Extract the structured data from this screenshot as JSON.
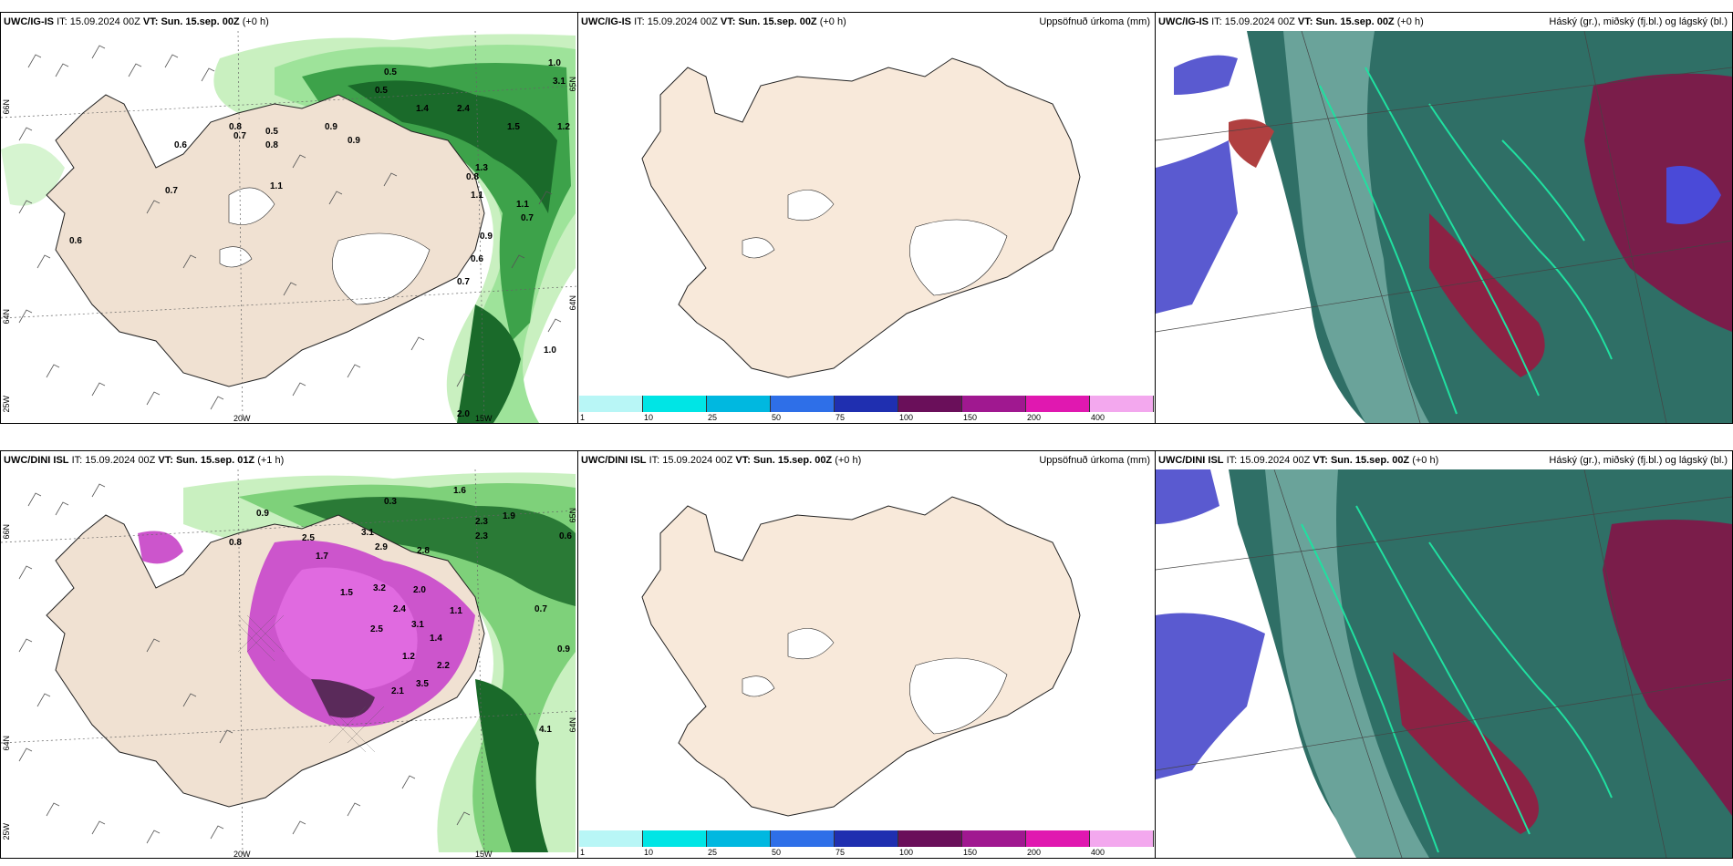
{
  "panels": [
    {
      "id": "p1",
      "src": "UWC/IG-IS",
      "it_label": "IT:",
      "it_value": "15.09.2024 00Z",
      "vt_label": "VT:",
      "vt_value": "Sun. 15.sep. 00Z",
      "lead": "(+0 h)",
      "right_title": ""
    },
    {
      "id": "p2",
      "src": "UWC/IG-IS",
      "it_label": "IT:",
      "it_value": "15.09.2024 00Z",
      "vt_label": "VT:",
      "vt_value": "Sun. 15.sep. 00Z",
      "lead": "(+0 h)",
      "right_title": "Uppsöfnuð úrkoma (mm)"
    },
    {
      "id": "p3",
      "src": "UWC/IG-IS",
      "it_label": "IT:",
      "it_value": "15.09.2024 00Z",
      "vt_label": "VT:",
      "vt_value": "Sun. 15.sep. 00Z",
      "lead": "(+0 h)",
      "right_title": "Háský (gr.), miðský (fj.bl.) og lágský (bl.)"
    },
    {
      "id": "p4",
      "src": "UWC/DINI ISL",
      "it_label": "IT:",
      "it_value": "15.09.2024 00Z",
      "vt_label": "VT:",
      "vt_value": "Sun. 15.sep. 01Z",
      "lead": "(+1 h)",
      "right_title": ""
    },
    {
      "id": "p5",
      "src": "UWC/DINI ISL",
      "it_label": "IT:",
      "it_value": "15.09.2024 00Z",
      "vt_label": "VT:",
      "vt_value": "Sun. 15.sep. 00Z",
      "lead": "(+0 h)",
      "right_title": "Uppsöfnuð úrkoma (mm)"
    },
    {
      "id": "p6",
      "src": "UWC/DINI ISL",
      "it_label": "IT:",
      "it_value": "15.09.2024 00Z",
      "vt_label": "VT:",
      "vt_value": "Sun. 15.sep. 00Z",
      "lead": "(+0 h)",
      "right_title": "Háský (gr.), miðský (fj.bl.) og lágský (bl.)"
    }
  ],
  "axis_labels": {
    "lat_top": "66N",
    "lat_bottom": "64N",
    "lon_left": "25W",
    "lon_mid": "20W",
    "lon_right": "15W",
    "lat_top_r": "65N",
    "lat_mid_r": "64N"
  },
  "colorbar": {
    "colors": [
      "#b8f6f6",
      "#00e5e5",
      "#00b8e0",
      "#2e6fe8",
      "#1f2fb0",
      "#6a0f5a",
      "#a01890",
      "#e018b0",
      "#f3a8ee"
    ],
    "ticks": [
      "1",
      "10",
      "25",
      "50",
      "75",
      "100",
      "150",
      "200",
      "400"
    ]
  },
  "precip_values_top": [
    "0.6",
    "0.8",
    "0.5",
    "0.8",
    "0.5",
    "1.1",
    "0.9",
    "1.5",
    "0.7",
    "1.0",
    "0.6",
    "0.8",
    "1.3",
    "1.1",
    "0.7",
    "0.6",
    "0.9",
    "0.7",
    "2.0",
    "1.0",
    "0.5",
    "1.2",
    "0.9",
    "1.4",
    "2.4",
    "3.1",
    "0.7",
    "1.1"
  ],
  "precip_values_bottom": [
    "0.9",
    "0.8",
    "2.5",
    "3.1",
    "1.7",
    "2.9",
    "2.8",
    "1.6",
    "0.3",
    "2.3",
    "1.9",
    "0.7",
    "3.2",
    "2.0",
    "1.5",
    "2.5",
    "3.1",
    "2.2",
    "1.2",
    "3.5",
    "2.1",
    "0.6",
    "0.9",
    "1.1",
    "2.4",
    "1.4",
    "2.3",
    "4.1"
  ]
}
